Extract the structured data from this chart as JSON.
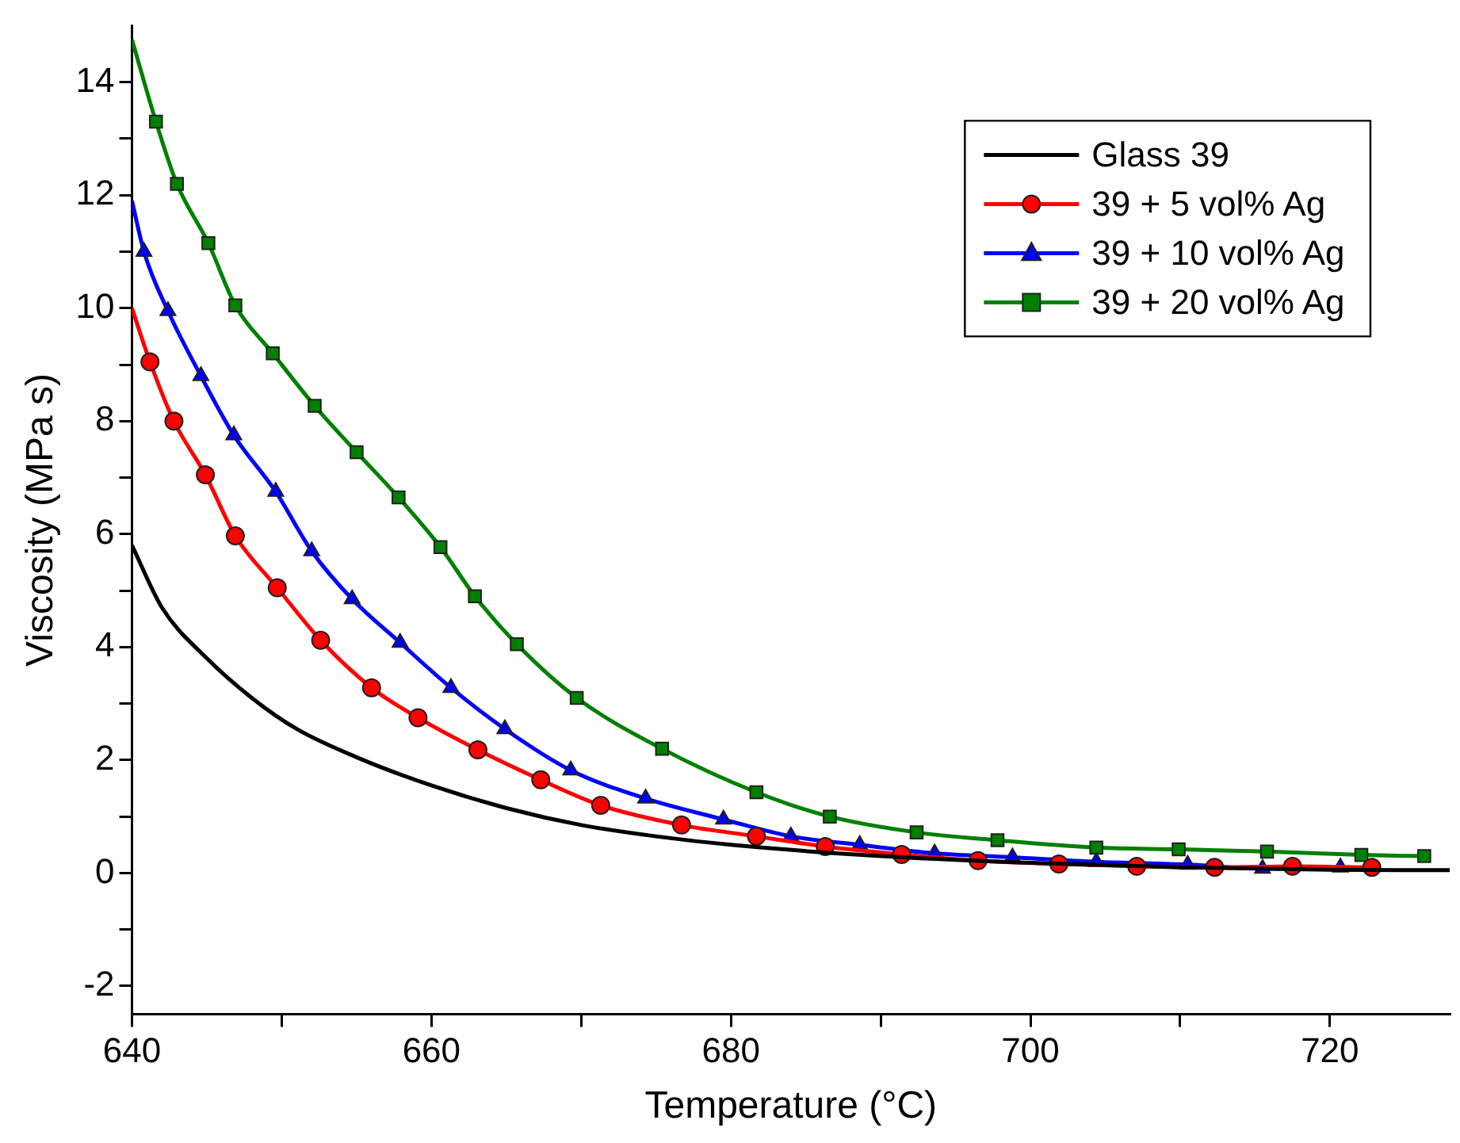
{
  "chart_data": {
    "type": "line",
    "xlabel": "Temperature (°C)",
    "ylabel": "Viscosity (MPa s)",
    "xlim": [
      640,
      728
    ],
    "ylim": [
      -2.5,
      15
    ],
    "xticks": [
      640,
      {
        "value": 650,
        "label": null
      },
      660,
      {
        "value": 670,
        "label": null
      },
      680,
      {
        "value": 690,
        "label": null
      },
      700,
      {
        "value": 710,
        "label": null
      },
      720
    ],
    "yticks": [
      -2,
      {
        "value": -1,
        "label": null
      },
      0,
      {
        "value": 1,
        "label": null
      },
      2,
      {
        "value": 3,
        "label": null
      },
      4,
      {
        "value": 5,
        "label": null
      },
      6,
      {
        "value": 7,
        "label": null
      },
      8,
      {
        "value": 9,
        "label": null
      },
      10,
      {
        "value": 11,
        "label": null
      },
      12,
      {
        "value": 13,
        "label": null
      },
      14
    ],
    "grid": false,
    "legend": "top right",
    "series": [
      {
        "name": "Glass 39",
        "color": "#000000",
        "marker": "none",
        "x": [
          640,
          642,
          645,
          648,
          651,
          655,
          660,
          665,
          670,
          675,
          680,
          690,
          700,
          710,
          720,
          728
        ],
        "values": [
          5.8,
          4.7,
          3.8,
          3.1,
          2.55,
          2.05,
          1.55,
          1.15,
          0.85,
          0.65,
          0.5,
          0.3,
          0.18,
          0.1,
          0.06,
          0.05
        ]
      },
      {
        "name": "39 + 5 vol% Ag",
        "color": "#ff0000",
        "marker": "circle",
        "x": [
          640,
          641.2,
          642.8,
          644.9,
          646.9,
          649.7,
          652.6,
          656.0,
          659.1,
          663.1,
          667.3,
          671.3,
          676.7,
          681.7,
          686.3,
          691.4,
          696.5,
          701.9,
          707.1,
          712.3,
          717.5,
          722.8
        ],
        "values": [
          10.0,
          9.05,
          8.0,
          7.05,
          5.97,
          5.05,
          4.12,
          3.28,
          2.75,
          2.18,
          1.65,
          1.2,
          0.85,
          0.65,
          0.47,
          0.33,
          0.22,
          0.16,
          0.12,
          0.1,
          0.12,
          0.1
        ]
      },
      {
        "name": "39 + 10 vol% Ag",
        "color": "#0000ff",
        "marker": "triangle",
        "x": [
          640,
          640.8,
          642.4,
          644.6,
          646.8,
          649.6,
          652.0,
          654.7,
          657.9,
          661.3,
          664.9,
          669.3,
          674.3,
          679.5,
          684.0,
          688.6,
          693.6,
          698.8,
          704.4,
          710.5,
          715.5,
          720.7
        ],
        "values": [
          11.9,
          11.0,
          9.95,
          8.8,
          7.75,
          6.75,
          5.7,
          4.85,
          4.08,
          3.28,
          2.55,
          1.82,
          1.32,
          0.95,
          0.65,
          0.5,
          0.35,
          0.28,
          0.2,
          0.15,
          0.08,
          0.1
        ]
      },
      {
        "name": "39 + 20 vol% Ag",
        "color": "#008000",
        "marker": "square",
        "x": [
          640,
          641.6,
          643.0,
          645.1,
          646.9,
          649.4,
          652.2,
          655.0,
          657.8,
          660.6,
          662.9,
          665.7,
          669.7,
          675.4,
          681.7,
          686.6,
          692.4,
          697.8,
          704.4,
          709.9,
          715.8,
          722.1,
          726.3
        ],
        "values": [
          14.75,
          13.3,
          12.2,
          11.15,
          10.05,
          9.2,
          8.27,
          7.45,
          6.65,
          5.77,
          4.9,
          4.05,
          3.1,
          2.2,
          1.43,
          1.0,
          0.72,
          0.58,
          0.45,
          0.42,
          0.38,
          0.32,
          0.3
        ]
      }
    ]
  }
}
